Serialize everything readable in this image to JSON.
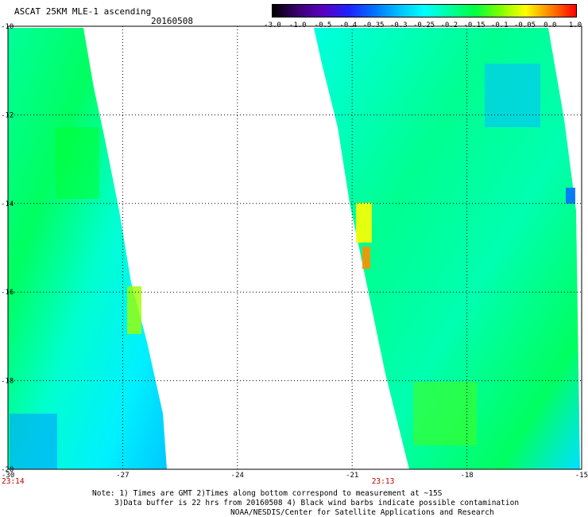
{
  "header": {
    "title": "ASCAT 25KM MLE-1 ascending",
    "date": "20160508"
  },
  "colorbar": {
    "labels": [
      "-3.0",
      "-1.0",
      "-0.5",
      "-0.4",
      "-0.35",
      "-0.3",
      "-0.25",
      "-0.2",
      "-0.15",
      "-0.1",
      "-0.05",
      "0.0",
      "1.0"
    ],
    "colors": [
      "#000000",
      "#3a0070",
      "#5a00c0",
      "#2020ff",
      "#0070ff",
      "#00c0ff",
      "#00ffff",
      "#00ffa0",
      "#00ff40",
      "#80ff00",
      "#ffff00",
      "#ff8000",
      "#ff0000"
    ]
  },
  "map": {
    "lat_labels": [
      "-10",
      "-12",
      "-14",
      "-16",
      "-18",
      "-20"
    ],
    "lon_labels": [
      "-30",
      "-27",
      "-24",
      "-21",
      "-18",
      "-15"
    ],
    "lat_values": [
      -10,
      -12,
      -14,
      -16,
      -18,
      -20
    ],
    "lon_values": [
      -30,
      -27,
      -24,
      -21,
      -18,
      -15
    ],
    "lat_range": [
      -20,
      -10
    ],
    "lon_range": [
      -30,
      -15
    ],
    "grid": "dotted",
    "pass_times": [
      {
        "label": "23:14",
        "lon": -30
      },
      {
        "label": "23:13",
        "lon": -20.2
      }
    ]
  },
  "notes": {
    "line1": "Note: 1) Times are GMT 2)Times along bottom correspond to measurement at ~15S",
    "line2": "3)Data buffer is 22 hrs from 20160508 4) Black wind barbs indicate possible contamination",
    "line3": "NOAA/NESDIS/Center for Satellite Applications and Research"
  }
}
